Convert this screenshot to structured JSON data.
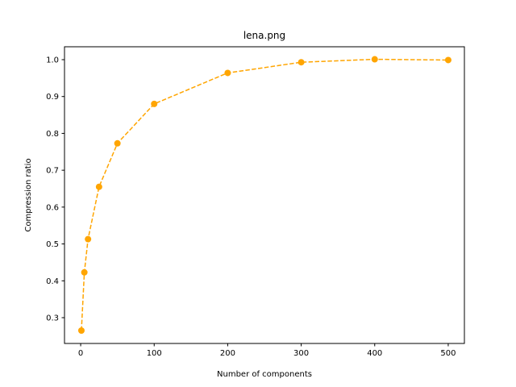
{
  "chart_data": {
    "type": "line",
    "title": "lena.png",
    "xlabel": "Number of components",
    "ylabel": "Compression ratio",
    "xlim": [
      -22,
      522
    ],
    "ylim": [
      0.23,
      1.035
    ],
    "xticks": [
      0,
      100,
      200,
      300,
      400,
      500
    ],
    "yticks": [
      0.3,
      0.4,
      0.5,
      0.6,
      0.7,
      0.8,
      0.9,
      1.0
    ],
    "grid": false,
    "series": [
      {
        "x": [
          1,
          5,
          10,
          25,
          50,
          100,
          200,
          300,
          400,
          500
        ],
        "y": [
          0.265,
          0.423,
          0.513,
          0.655,
          0.773,
          0.88,
          0.964,
          0.993,
          1.001,
          0.999
        ],
        "color": "#FFA500",
        "line_style": "dashed",
        "marker": "circle"
      }
    ]
  }
}
